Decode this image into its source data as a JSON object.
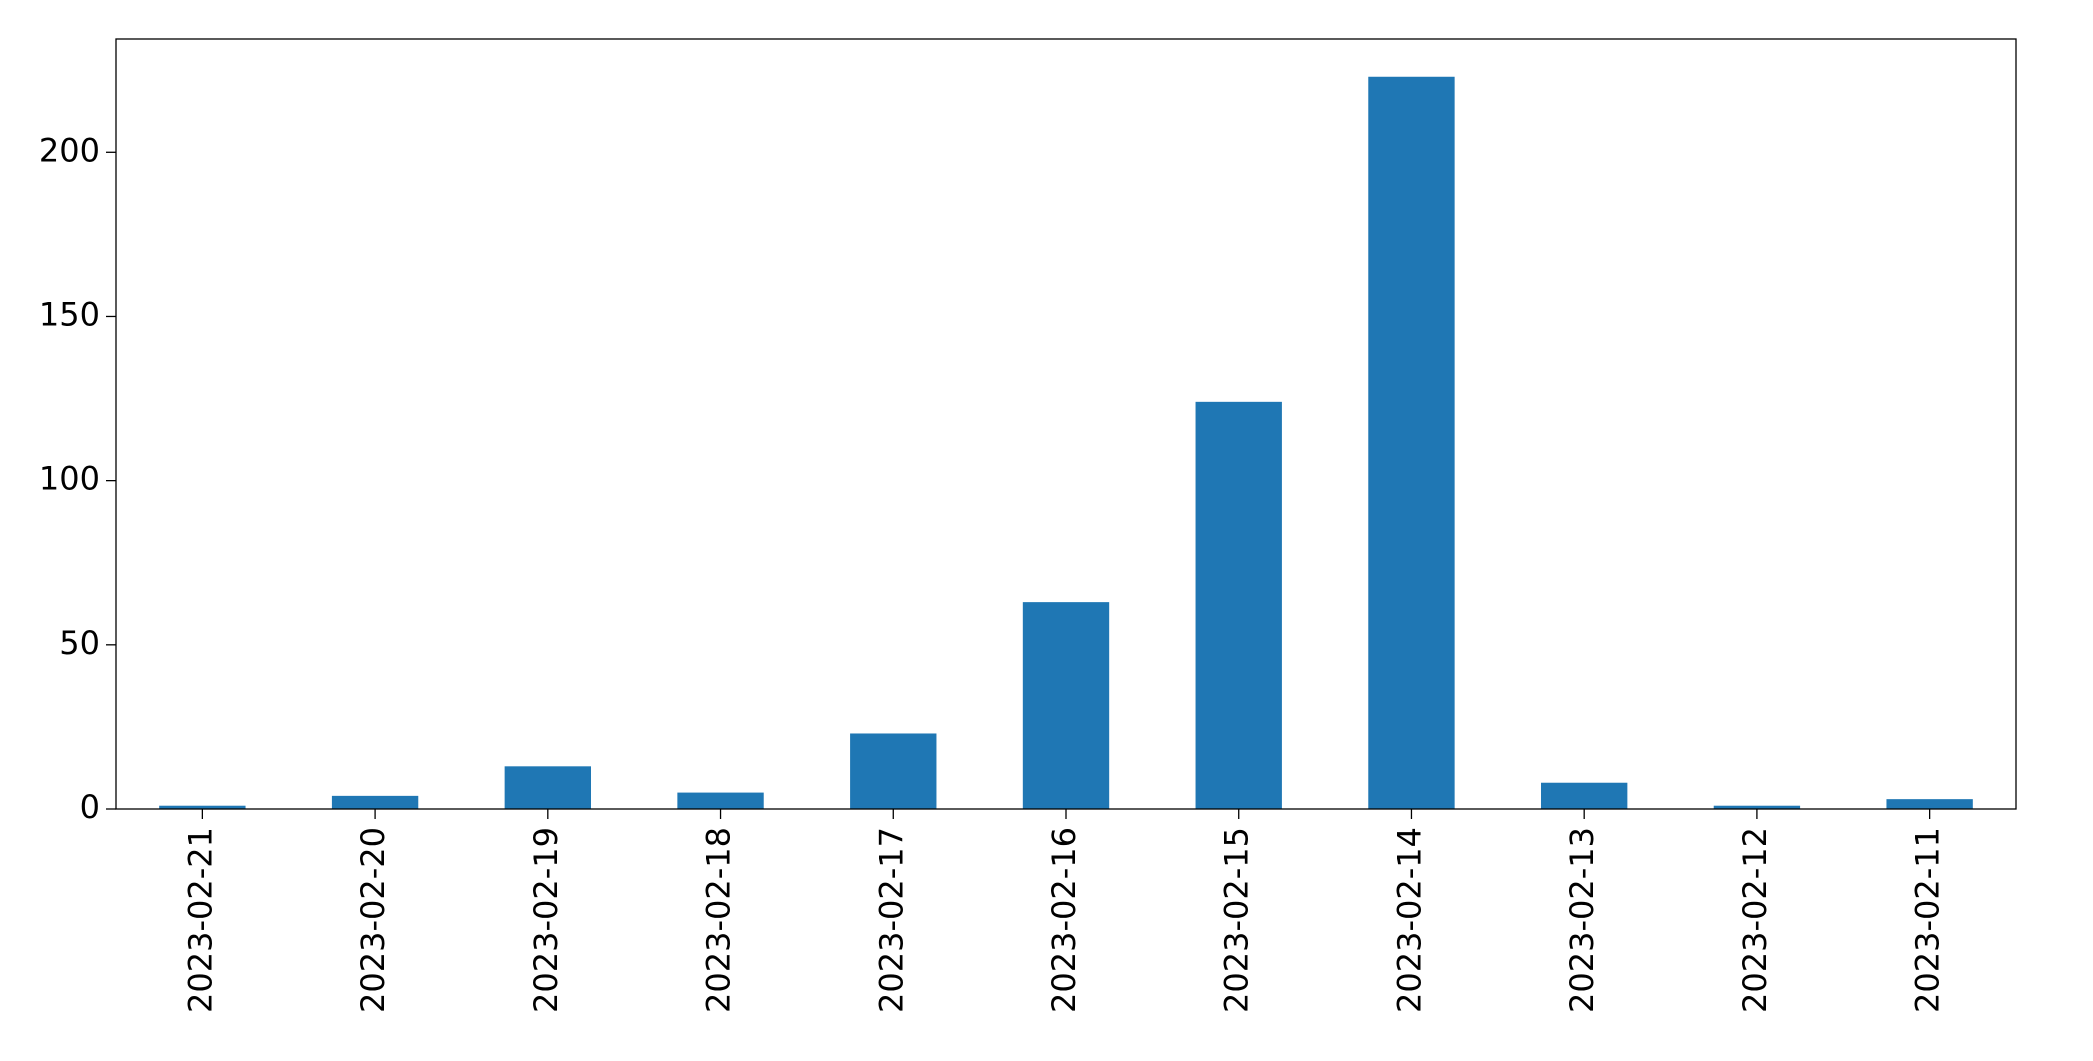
{
  "chart_data": {
    "type": "bar",
    "categories": [
      "2023-02-21",
      "2023-02-20",
      "2023-02-19",
      "2023-02-18",
      "2023-02-17",
      "2023-02-16",
      "2023-02-15",
      "2023-02-14",
      "2023-02-13",
      "2023-02-12",
      "2023-02-11"
    ],
    "values": [
      1,
      4,
      13,
      5,
      23,
      63,
      124,
      223,
      8,
      1,
      3
    ],
    "color": "#1f77b4",
    "ylim": [
      0,
      234.5
    ],
    "yticks": [
      0,
      50,
      100,
      150,
      200
    ],
    "grid": false
  }
}
